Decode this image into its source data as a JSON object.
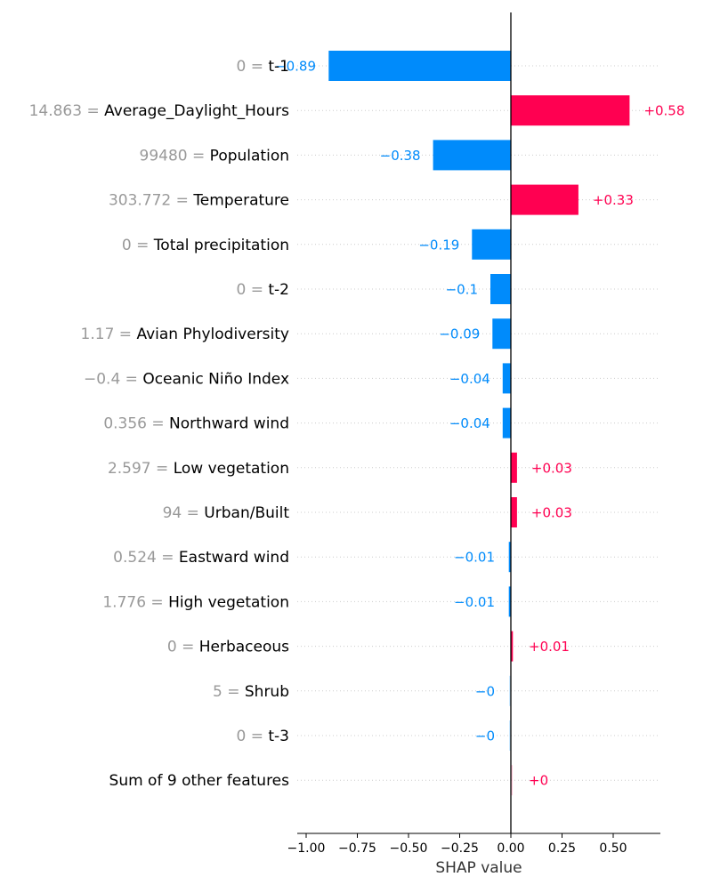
{
  "chart_data": {
    "type": "bar",
    "orientation": "horizontal",
    "xlabel": "SHAP value",
    "xlim": [
      -1.06,
      0.73
    ],
    "xticks": [
      -1.0,
      -0.75,
      -0.5,
      -0.25,
      0.0,
      0.25,
      0.5
    ],
    "xtick_labels": [
      "−1.00",
      "−0.75",
      "−0.50",
      "−0.25",
      "0.00",
      "0.25",
      "0.50"
    ],
    "grid": "horizontal dotted",
    "positive_color": "#ff0051",
    "negative_color": "#008bfb",
    "value_text_color": "#999999",
    "features": [
      {
        "value": "0",
        "name": "t-1",
        "shap": -0.89,
        "label": "−0.89"
      },
      {
        "value": "14.863",
        "name": "Average_Daylight_Hours",
        "shap": 0.58,
        "label": "+0.58"
      },
      {
        "value": "99480",
        "name": "Population",
        "shap": -0.38,
        "label": "−0.38"
      },
      {
        "value": "303.772",
        "name": "Temperature",
        "shap": 0.33,
        "label": "+0.33"
      },
      {
        "value": "0",
        "name": "Total precipitation",
        "shap": -0.19,
        "label": "−0.19"
      },
      {
        "value": "0",
        "name": "t-2",
        "shap": -0.1,
        "label": "−0.1"
      },
      {
        "value": "1.17",
        "name": "Avian Phylodiversity",
        "shap": -0.09,
        "label": "−0.09"
      },
      {
        "value": "−0.4",
        "name": "Oceanic Niño Index",
        "shap": -0.04,
        "label": "−0.04"
      },
      {
        "value": "0.356",
        "name": "Northward wind",
        "shap": -0.04,
        "label": "−0.04"
      },
      {
        "value": "2.597",
        "name": "Low vegetation",
        "shap": 0.03,
        "label": "+0.03"
      },
      {
        "value": "94",
        "name": "Urban/Built",
        "shap": 0.03,
        "label": "+0.03"
      },
      {
        "value": "0.524",
        "name": "Eastward wind",
        "shap": -0.01,
        "label": "−0.01"
      },
      {
        "value": "1.776",
        "name": "High vegetation",
        "shap": -0.01,
        "label": "−0.01"
      },
      {
        "value": "0",
        "name": "Herbaceous",
        "shap": 0.01,
        "label": "+0.01"
      },
      {
        "value": "5",
        "name": "Shrub",
        "shap": -0.001,
        "label": "−0"
      },
      {
        "value": "0",
        "name": "t-3",
        "shap": -0.001,
        "label": "−0"
      },
      {
        "value": "",
        "name": "Sum of 9 other features",
        "shap": 0.001,
        "label": "+0"
      }
    ]
  }
}
